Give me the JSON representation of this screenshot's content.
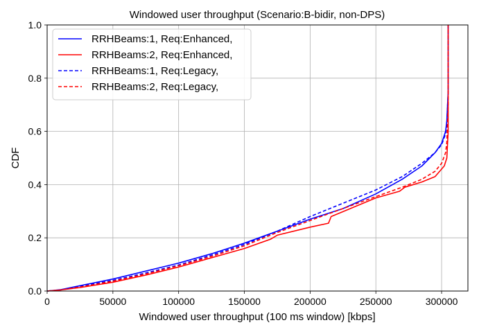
{
  "chart_data": {
    "type": "line",
    "title": "Windowed user throughput (Scenario:B-bidir, non-DPS)",
    "xlabel": "Windowed user throughput (100 ms window) [kbps]",
    "ylabel": "CDF",
    "xlim": [
      0,
      320000
    ],
    "ylim": [
      0,
      1.0
    ],
    "xticks": [
      0,
      50000,
      100000,
      150000,
      200000,
      250000,
      300000
    ],
    "yticks": [
      0.0,
      0.2,
      0.4,
      0.6,
      0.8,
      1.0
    ],
    "xtick_labels": [
      "0",
      "50000",
      "100000",
      "150000",
      "200000",
      "250000",
      "300000"
    ],
    "ytick_labels": [
      "0.0",
      "0.2",
      "0.4",
      "0.6",
      "0.8",
      "1.0"
    ],
    "grid": true,
    "legend_position": "top-left",
    "series": [
      {
        "name": "RRHBeams:1, Req:Enhanced,",
        "color": "#0000ff",
        "style": "solid",
        "x": [
          0,
          10000,
          25000,
          50000,
          75000,
          100000,
          125000,
          150000,
          175000,
          200000,
          225000,
          250000,
          270000,
          285000,
          295000,
          300000,
          303000,
          304000,
          305000,
          305000
        ],
        "y": [
          0,
          0.005,
          0.02,
          0.045,
          0.075,
          0.105,
          0.14,
          0.18,
          0.225,
          0.27,
          0.31,
          0.365,
          0.42,
          0.47,
          0.52,
          0.555,
          0.6,
          0.64,
          0.75,
          1.0
        ]
      },
      {
        "name": "RRHBeams:2, Req:Enhanced,",
        "color": "#ff0000",
        "style": "solid",
        "x": [
          0,
          10000,
          25000,
          50000,
          75000,
          100000,
          125000,
          150000,
          170000,
          175000,
          200000,
          214000,
          216000,
          250000,
          268000,
          272000,
          285000,
          295000,
          302000,
          304000,
          305000,
          305000
        ],
        "y": [
          0,
          0.004,
          0.013,
          0.033,
          0.06,
          0.09,
          0.125,
          0.16,
          0.195,
          0.21,
          0.24,
          0.255,
          0.28,
          0.35,
          0.375,
          0.39,
          0.41,
          0.43,
          0.47,
          0.5,
          0.6,
          1.0
        ]
      },
      {
        "name": "RRHBeams:1, Req:Legacy,",
        "color": "#0000ff",
        "style": "dashed",
        "x": [
          0,
          10000,
          25000,
          50000,
          75000,
          100000,
          125000,
          150000,
          175000,
          200000,
          225000,
          250000,
          270000,
          285000,
          295000,
          300000,
          303000,
          304000,
          305000,
          305000
        ],
        "y": [
          0,
          0.004,
          0.017,
          0.04,
          0.068,
          0.098,
          0.135,
          0.175,
          0.225,
          0.28,
          0.33,
          0.38,
          0.43,
          0.48,
          0.52,
          0.55,
          0.59,
          0.63,
          0.75,
          1.0
        ]
      },
      {
        "name": "RRHBeams:2, Req:Legacy,",
        "color": "#ff0000",
        "style": "dashed",
        "x": [
          0,
          10000,
          25000,
          50000,
          75000,
          100000,
          125000,
          150000,
          175000,
          200000,
          225000,
          250000,
          270000,
          285000,
          295000,
          300000,
          303000,
          304000,
          305000,
          305000
        ],
        "y": [
          0,
          0.004,
          0.015,
          0.037,
          0.064,
          0.095,
          0.13,
          0.17,
          0.22,
          0.265,
          0.31,
          0.355,
          0.39,
          0.42,
          0.45,
          0.48,
          0.52,
          0.56,
          0.7,
          1.0
        ]
      }
    ]
  }
}
